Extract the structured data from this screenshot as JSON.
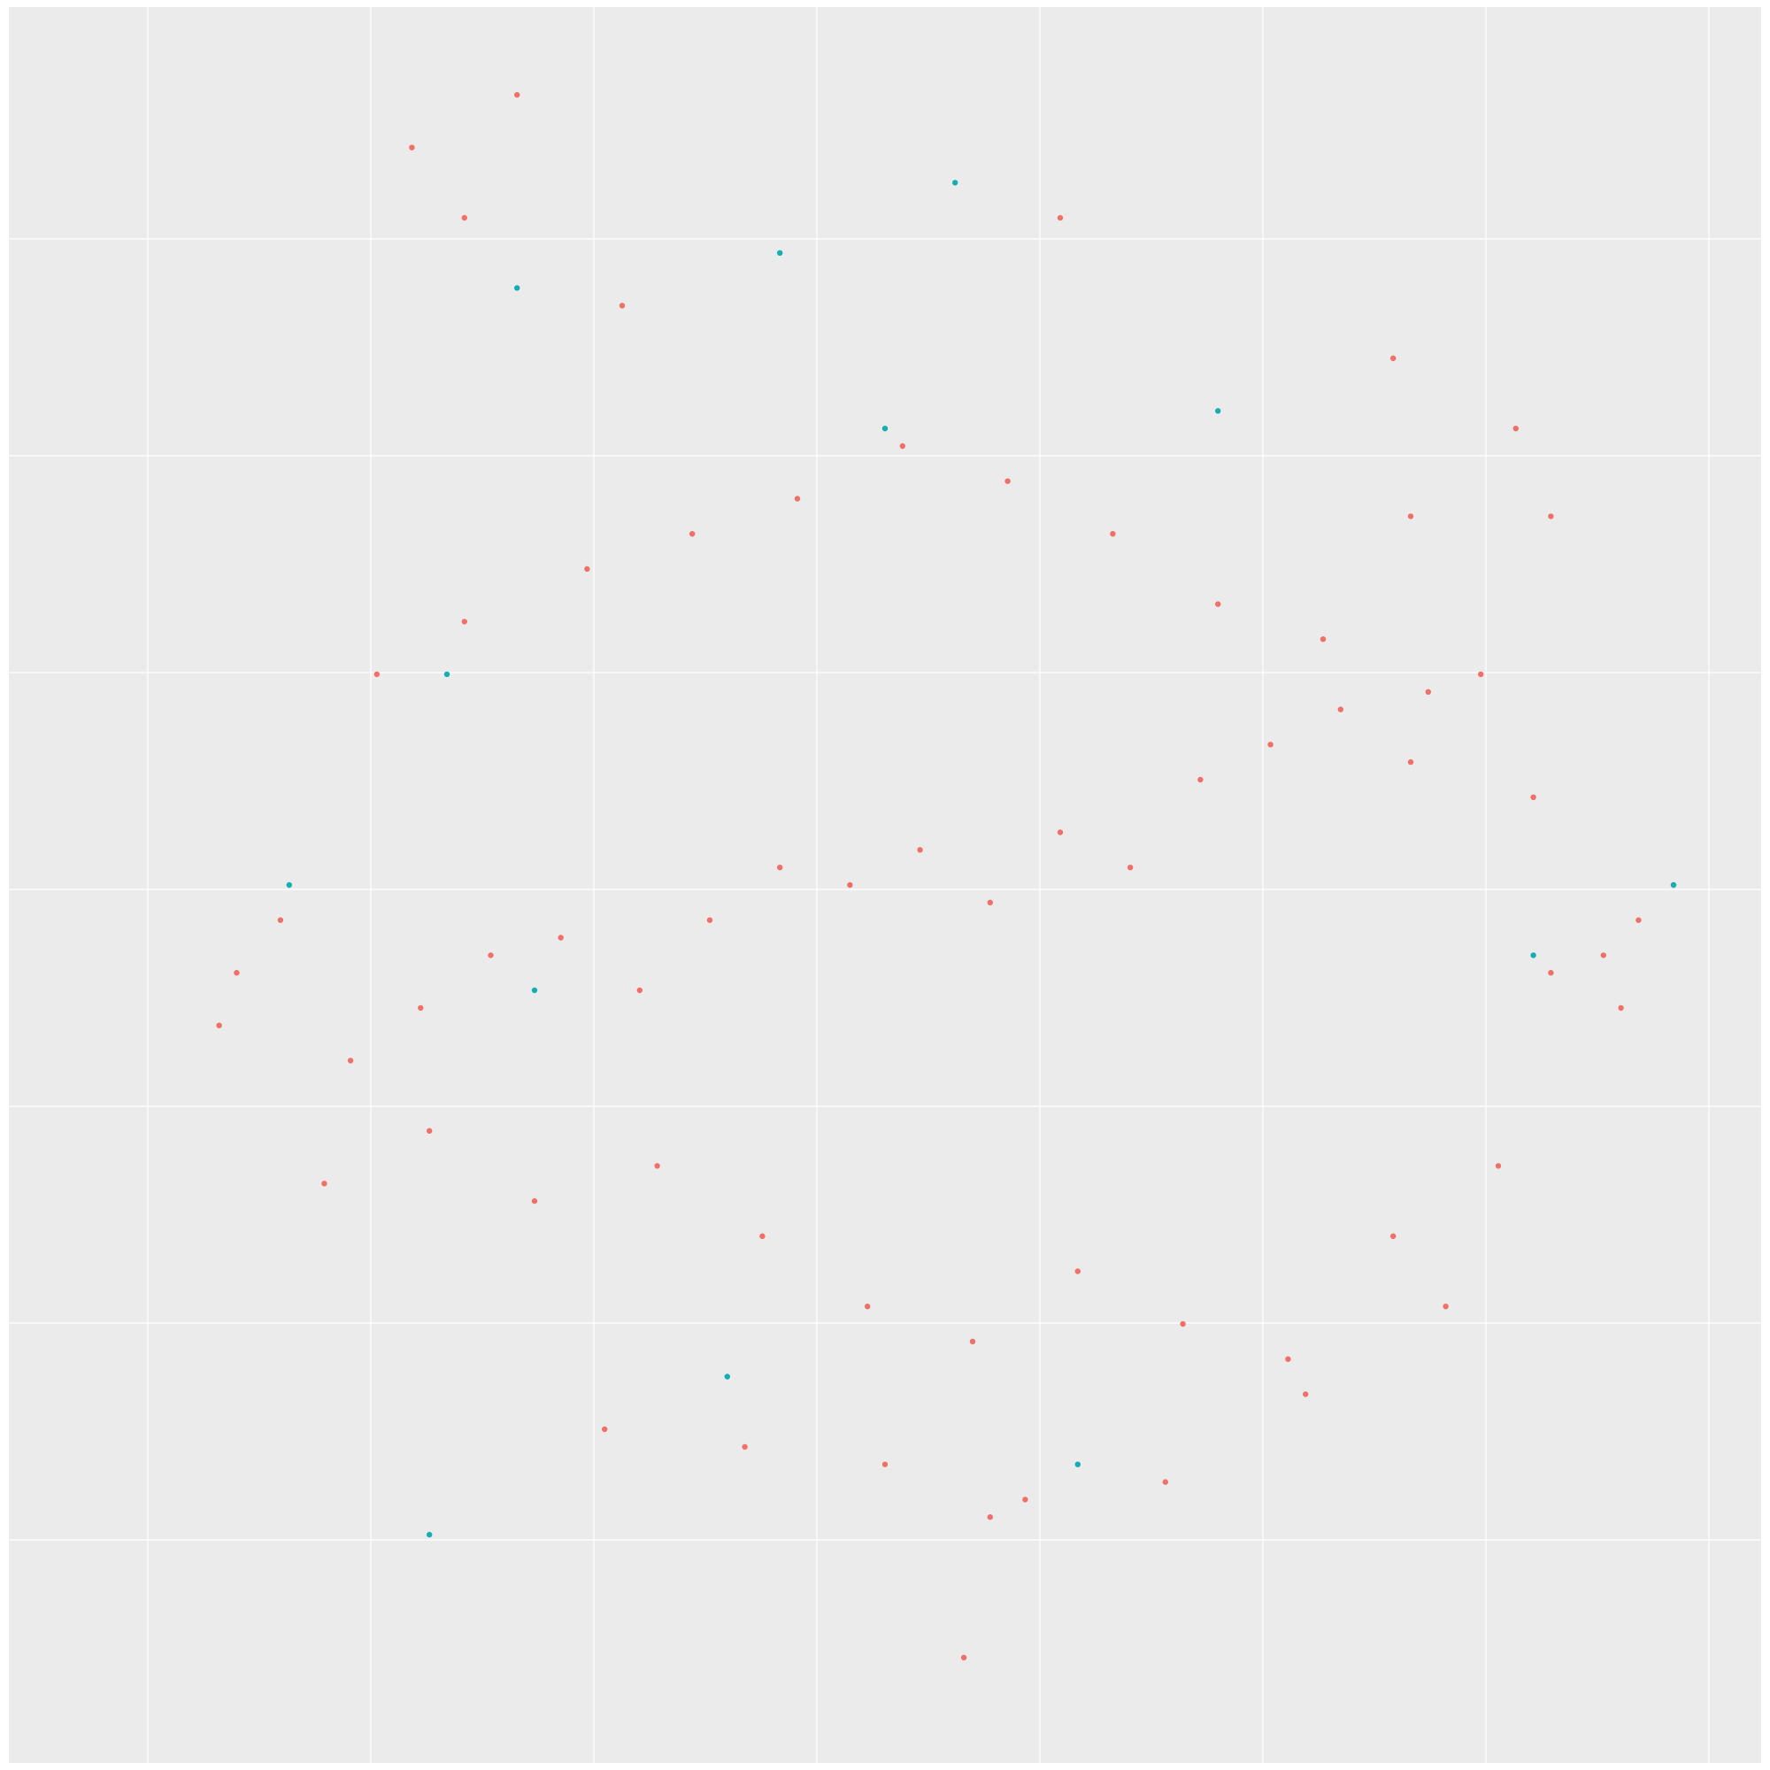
{
  "chart_data": {
    "type": "scatter",
    "title": "",
    "xlabel": "",
    "ylabel": "",
    "grid": true,
    "legend": "none",
    "colors": {
      "panel_background": "#EBEBEB",
      "grid_line": "#FFFFFF",
      "series_primary": "#F07068",
      "series_secondary": "#13AEB2"
    },
    "xlim": [
      0.0,
      1.0
    ],
    "ylim": [
      0.0,
      1.0
    ],
    "series": [
      {
        "color": "#F07068",
        "x": [
          0.12,
          0.13,
          0.155,
          0.195,
          0.235,
          0.275,
          0.315,
          0.36,
          0.4,
          0.44,
          0.48,
          0.52,
          0.56,
          0.6,
          0.64,
          0.68,
          0.72,
          0.76,
          0.8,
          0.84,
          0.88,
          0.92,
          0.95,
          0.21,
          0.26,
          0.33,
          0.39,
          0.45,
          0.51,
          0.57,
          0.63,
          0.69,
          0.75,
          0.81,
          0.87,
          0.93,
          0.18,
          0.24,
          0.3,
          0.37,
          0.43,
          0.49,
          0.55,
          0.61,
          0.67,
          0.73,
          0.79,
          0.85,
          0.91,
          0.34,
          0.42,
          0.5,
          0.58,
          0.66,
          0.74,
          0.82,
          0.23,
          0.26,
          0.29,
          0.35,
          0.6,
          0.79,
          0.88,
          0.8,
          0.86,
          0.56,
          0.545
        ],
        "y": [
          0.42,
          0.45,
          0.48,
          0.4,
          0.43,
          0.46,
          0.47,
          0.44,
          0.48,
          0.51,
          0.5,
          0.52,
          0.49,
          0.53,
          0.51,
          0.56,
          0.58,
          0.6,
          0.57,
          0.62,
          0.45,
          0.43,
          0.5,
          0.62,
          0.65,
          0.68,
          0.7,
          0.72,
          0.75,
          0.73,
          0.7,
          0.66,
          0.64,
          0.61,
          0.55,
          0.48,
          0.33,
          0.36,
          0.32,
          0.34,
          0.3,
          0.26,
          0.24,
          0.28,
          0.25,
          0.23,
          0.3,
          0.34,
          0.46,
          0.19,
          0.18,
          0.17,
          0.15,
          0.16,
          0.21,
          0.26,
          0.92,
          0.88,
          0.95,
          0.83,
          0.88,
          0.8,
          0.71,
          0.71,
          0.76,
          0.14,
          0.06
        ]
      },
      {
        "color": "#13AEB2",
        "x": [
          0.16,
          0.25,
          0.29,
          0.44,
          0.5,
          0.54,
          0.3,
          0.41,
          0.24,
          0.61,
          0.87,
          0.95,
          0.69
        ],
        "y": [
          0.5,
          0.62,
          0.84,
          0.86,
          0.76,
          0.9,
          0.44,
          0.22,
          0.13,
          0.17,
          0.46,
          0.5,
          0.77
        ]
      }
    ]
  }
}
